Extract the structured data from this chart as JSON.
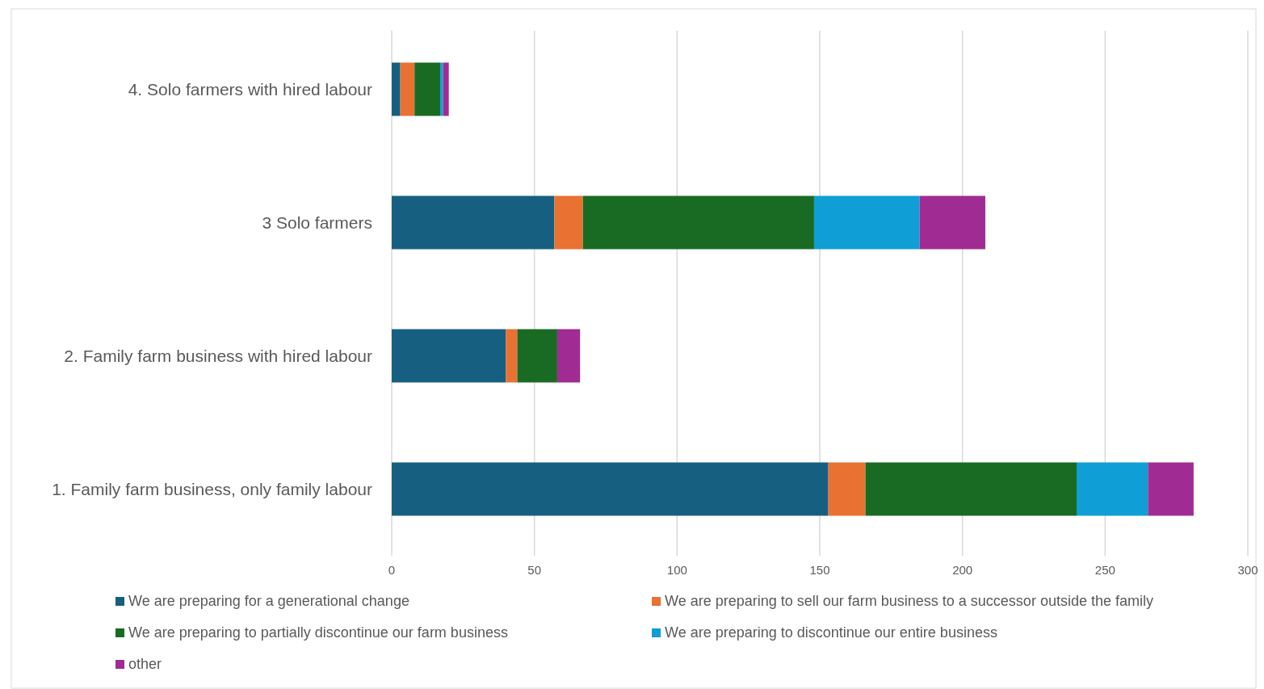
{
  "chart_data": {
    "type": "bar",
    "orientation": "horizontal",
    "stacked": true,
    "categories": [
      "4. Solo farmers with hired labour",
      "3 Solo farmers",
      "2. Family farm business with hired labour",
      "1. Family farm business, only family labour"
    ],
    "series": [
      {
        "name": "We are preparing for a generational change",
        "color": "#175f80",
        "values": [
          3,
          57,
          40,
          153
        ]
      },
      {
        "name": "We are preparing to sell our farm business to a successor outside the family",
        "color": "#e97132",
        "values": [
          5,
          10,
          4,
          13
        ]
      },
      {
        "name": "We are preparing to partially discontinue our farm business",
        "color": "#196b24",
        "values": [
          9,
          81,
          14,
          74
        ]
      },
      {
        "name": "We are preparing to discontinue our entire business",
        "color": "#0f9ed5",
        "values": [
          1,
          37,
          0,
          25
        ]
      },
      {
        "name": "other",
        "color": "#a02b93",
        "values": [
          2,
          23,
          8,
          16
        ]
      }
    ],
    "xlim": [
      0,
      300
    ],
    "xticks": [
      0,
      50,
      100,
      150,
      200,
      250,
      300
    ],
    "grid": "x",
    "legend": "bottom"
  }
}
